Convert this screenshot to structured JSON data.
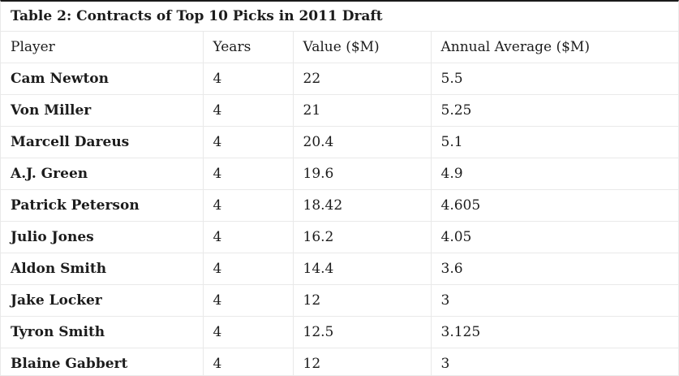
{
  "chart_data": {
    "type": "table",
    "title": "Table 2: Contracts of Top 10 Picks in 2011 Draft",
    "columns": [
      "Player",
      "Years",
      "Value ($M)",
      "Annual Average ($M)"
    ],
    "rows": [
      [
        "Cam Newton",
        "4",
        "22",
        "5.5"
      ],
      [
        "Von Miller",
        "4",
        "21",
        "5.25"
      ],
      [
        "Marcell Dareus",
        "4",
        "20.4",
        "5.1"
      ],
      [
        "A.J. Green",
        "4",
        "19.6",
        "4.9"
      ],
      [
        "Patrick Peterson",
        "4",
        "18.42",
        "4.605"
      ],
      [
        "Julio Jones",
        "4",
        "16.2",
        "4.05"
      ],
      [
        "Aldon Smith",
        "4",
        "14.4",
        "3.6"
      ],
      [
        "Jake Locker",
        "4",
        "12",
        "3"
      ],
      [
        "Tyron Smith",
        "4",
        "12.5",
        "3.125"
      ],
      [
        "Blaine Gabbert",
        "4",
        "12",
        "3"
      ]
    ]
  },
  "colors": {
    "top_border": "#1a1a1a",
    "grid_border": "#e9e9e9",
    "text": "#1c1c1c",
    "background": "#ffffff"
  }
}
